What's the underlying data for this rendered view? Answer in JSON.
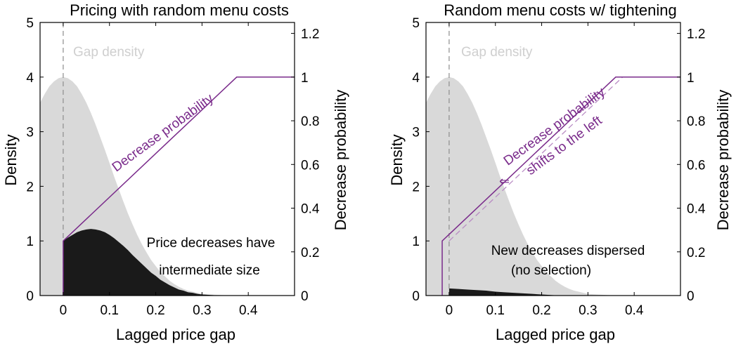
{
  "chart_data": [
    {
      "type": "area",
      "title": "Pricing with random menu costs",
      "xlabel": "Lagged price gap",
      "ylabel_left": "Density",
      "ylabel_right": "Decrease probability",
      "xlim": [
        -0.05,
        0.5
      ],
      "ylim_left": [
        0,
        5
      ],
      "ylim_right": [
        0,
        1.25
      ],
      "x_ticks": [
        0,
        0.1,
        0.2,
        0.3,
        0.4
      ],
      "x_tick_labels": [
        "0",
        "0.1",
        "0.2",
        "0.3",
        "0.4"
      ],
      "y_left_ticks": [
        0,
        1,
        2,
        3,
        4,
        5
      ],
      "y_left_tick_labels": [
        "0",
        "1",
        "2",
        "3",
        "4",
        "5"
      ],
      "y_right_ticks": [
        0,
        0.2,
        0.4,
        0.6,
        0.8,
        1,
        1.2
      ],
      "y_right_tick_labels": [
        "0",
        "0.2",
        "0.4",
        "0.6",
        "0.8",
        "1",
        "1.2"
      ],
      "reference_line_x": 0,
      "gap_density": {
        "label": "Gap density",
        "color": "#d9d9d9",
        "x": [
          -0.05,
          -0.04,
          -0.03,
          -0.02,
          -0.01,
          0,
          0.01,
          0.02,
          0.03,
          0.04,
          0.05,
          0.06,
          0.07,
          0.08,
          0.09,
          0.1,
          0.11,
          0.12,
          0.13,
          0.14,
          0.15,
          0.16,
          0.17,
          0.18,
          0.19,
          0.2,
          0.21,
          0.22,
          0.23,
          0.24,
          0.25,
          0.26,
          0.27,
          0.28,
          0.29,
          0.3,
          0.32,
          0.34,
          0.36
        ],
        "y": [
          3.53,
          3.69,
          3.83,
          3.92,
          3.98,
          4.0,
          3.98,
          3.92,
          3.83,
          3.69,
          3.53,
          3.34,
          3.13,
          2.9,
          2.67,
          2.43,
          2.18,
          1.95,
          1.72,
          1.5,
          1.3,
          1.11,
          0.94,
          0.79,
          0.65,
          0.54,
          0.43,
          0.35,
          0.27,
          0.21,
          0.16,
          0.12,
          0.09,
          0.07,
          0.05,
          0.03,
          0.02,
          0.01,
          0.0
        ]
      },
      "decreases_density": {
        "color": "#1a1a1a",
        "x": [
          0,
          0.01,
          0.02,
          0.03,
          0.04,
          0.05,
          0.06,
          0.07,
          0.08,
          0.09,
          0.1,
          0.11,
          0.12,
          0.13,
          0.14,
          0.15,
          0.16,
          0.17,
          0.18,
          0.19,
          0.2,
          0.21,
          0.22,
          0.23,
          0.24,
          0.25,
          0.26,
          0.27,
          0.28,
          0.29,
          0.3,
          0.32,
          0.34,
          0.36
        ],
        "y": [
          1.0,
          1.06,
          1.11,
          1.16,
          1.19,
          1.21,
          1.22,
          1.21,
          1.19,
          1.16,
          1.11,
          1.05,
          0.98,
          0.91,
          0.83,
          0.74,
          0.66,
          0.58,
          0.5,
          0.42,
          0.36,
          0.29,
          0.24,
          0.19,
          0.15,
          0.11,
          0.09,
          0.06,
          0.05,
          0.03,
          0.02,
          0.01,
          0.0,
          0.0
        ]
      },
      "decrease_probability": {
        "label": "Decrease probability",
        "color": "#7a2b8b",
        "x": [
          0,
          0,
          0.375,
          0.5
        ],
        "y": [
          0,
          0.25,
          1.0,
          1.0
        ]
      },
      "annotations": [
        "Price decreases have",
        "intermediate size"
      ]
    },
    {
      "type": "area",
      "title": "Random menu costs w/ tightening",
      "xlabel": "Lagged price gap",
      "ylabel_left": "Density",
      "ylabel_right": "Decrease probability",
      "xlim": [
        -0.05,
        0.5
      ],
      "ylim_left": [
        0,
        5
      ],
      "ylim_right": [
        0,
        1.25
      ],
      "x_ticks": [
        0,
        0.1,
        0.2,
        0.3,
        0.4
      ],
      "x_tick_labels": [
        "0",
        "0.1",
        "0.2",
        "0.3",
        "0.4"
      ],
      "y_left_ticks": [
        0,
        1,
        2,
        3,
        4,
        5
      ],
      "y_left_tick_labels": [
        "0",
        "1",
        "2",
        "3",
        "4",
        "5"
      ],
      "y_right_ticks": [
        0,
        0.2,
        0.4,
        0.6,
        0.8,
        1,
        1.2
      ],
      "y_right_tick_labels": [
        "0",
        "0.2",
        "0.4",
        "0.6",
        "0.8",
        "1",
        "1.2"
      ],
      "reference_line_x": 0,
      "gap_density": {
        "label": "Gap density",
        "color": "#d9d9d9",
        "x": [
          -0.05,
          -0.04,
          -0.03,
          -0.02,
          -0.01,
          0,
          0.01,
          0.02,
          0.03,
          0.04,
          0.05,
          0.06,
          0.07,
          0.08,
          0.09,
          0.1,
          0.11,
          0.12,
          0.13,
          0.14,
          0.15,
          0.16,
          0.17,
          0.18,
          0.19,
          0.2,
          0.21,
          0.22,
          0.23,
          0.24,
          0.25,
          0.26,
          0.27,
          0.28,
          0.29,
          0.3,
          0.32,
          0.34,
          0.36
        ],
        "y": [
          3.53,
          3.69,
          3.83,
          3.92,
          3.98,
          4.0,
          3.98,
          3.92,
          3.83,
          3.69,
          3.53,
          3.34,
          3.13,
          2.9,
          2.67,
          2.43,
          2.18,
          1.95,
          1.72,
          1.5,
          1.3,
          1.11,
          0.94,
          0.79,
          0.65,
          0.54,
          0.43,
          0.35,
          0.27,
          0.21,
          0.16,
          0.12,
          0.09,
          0.07,
          0.05,
          0.03,
          0.02,
          0.01,
          0.0
        ]
      },
      "decreases_density": {
        "color": "#1a1a1a",
        "x": [
          0,
          0.02,
          0.04,
          0.06,
          0.08,
          0.1,
          0.12,
          0.14,
          0.16,
          0.18,
          0.2,
          0.22,
          0.24
        ],
        "y": [
          0.13,
          0.12,
          0.11,
          0.1,
          0.09,
          0.07,
          0.06,
          0.05,
          0.04,
          0.03,
          0.02,
          0.01,
          0.0
        ]
      },
      "decrease_probability": {
        "label": "Decrease probability",
        "color": "#7a2b8b",
        "x": [
          -0.015,
          -0.015,
          0.36,
          0.5
        ],
        "y": [
          0,
          0.25,
          1.0,
          1.0
        ]
      },
      "decrease_probability_old": {
        "color": "#b98cc4",
        "x": [
          0,
          0.375
        ],
        "y": [
          0.25,
          1.0
        ]
      },
      "annotations": [
        "Decrease probability",
        "shifts to the left",
        "New decreases dispersed",
        "(no selection)"
      ]
    }
  ]
}
